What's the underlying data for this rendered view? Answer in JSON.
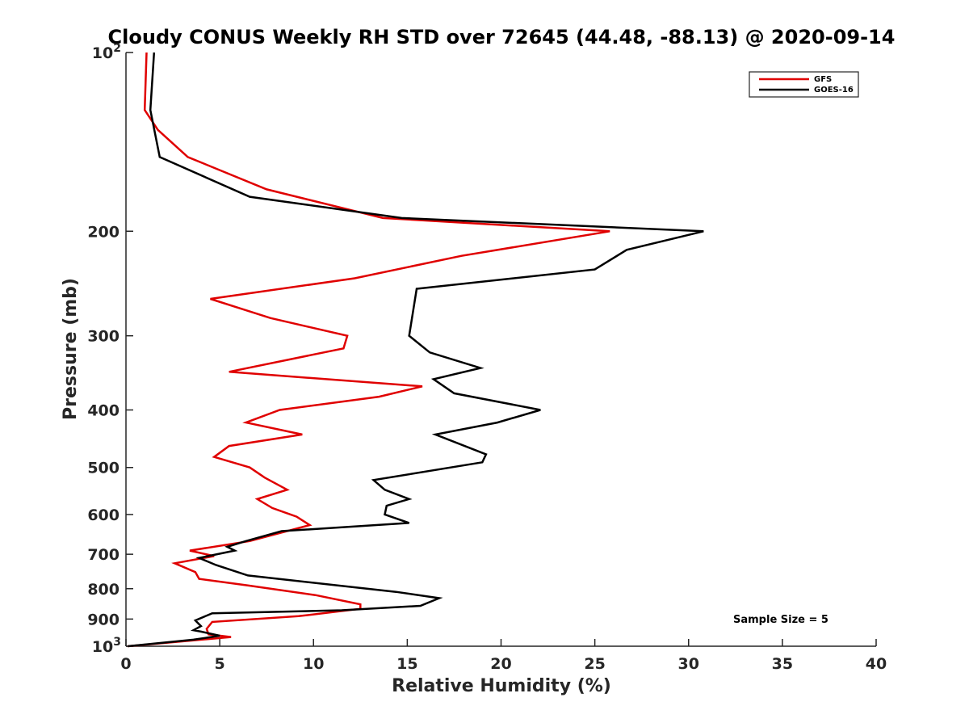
{
  "chart_data": {
    "type": "line",
    "title": "Cloudy CONUS Weekly RH STD over 72645 (44.48, -88.13) @ 2020-09-14",
    "xlabel": "Relative Humidity (%)",
    "ylabel": "Pressure (mb)",
    "xlim": [
      0,
      40
    ],
    "ylim": [
      1000,
      100
    ],
    "yscale": "log",
    "y_inverted": true,
    "grid": false,
    "legend_position": "top-right",
    "x_ticks": [
      "0",
      "5",
      "10",
      "15",
      "20",
      "25",
      "30",
      "35",
      "40"
    ],
    "y_ticks": [
      {
        "base": "10",
        "exp": "2"
      },
      {
        "base": "200",
        "exp": ""
      },
      {
        "base": "300",
        "exp": ""
      },
      {
        "base": "400",
        "exp": ""
      },
      {
        "base": "500",
        "exp": ""
      },
      {
        "base": "600",
        "exp": ""
      },
      {
        "base": "700",
        "exp": ""
      },
      {
        "base": "800",
        "exp": ""
      },
      {
        "base": "900",
        "exp": ""
      },
      {
        "base": "10",
        "exp": "3"
      }
    ],
    "annotation": "Sample Size = 5",
    "series": [
      {
        "name": "GFS",
        "color": "#e00000",
        "points": [
          [
            1.1,
            100
          ],
          [
            1.0,
            125
          ],
          [
            1.7,
            135
          ],
          [
            3.3,
            150
          ],
          [
            7.5,
            170
          ],
          [
            13.7,
            190
          ],
          [
            25.8,
            200
          ],
          [
            17.9,
            220
          ],
          [
            12.2,
            240
          ],
          [
            4.5,
            260
          ],
          [
            7.7,
            280
          ],
          [
            11.8,
            300
          ],
          [
            11.6,
            315
          ],
          [
            5.5,
            345
          ],
          [
            15.8,
            365
          ],
          [
            13.5,
            380
          ],
          [
            8.2,
            400
          ],
          [
            6.4,
            420
          ],
          [
            9.4,
            440
          ],
          [
            5.5,
            460
          ],
          [
            4.7,
            480
          ],
          [
            6.6,
            500
          ],
          [
            7.4,
            520
          ],
          [
            8.6,
            545
          ],
          [
            7.0,
            565
          ],
          [
            7.8,
            585
          ],
          [
            9.1,
            605
          ],
          [
            9.8,
            625
          ],
          [
            6.6,
            665
          ],
          [
            3.4,
            690
          ],
          [
            4.7,
            705
          ],
          [
            2.6,
            725
          ],
          [
            3.7,
            750
          ],
          [
            3.9,
            770
          ],
          [
            6.5,
            790
          ],
          [
            10.1,
            820
          ],
          [
            12.5,
            850
          ],
          [
            12.5,
            865
          ],
          [
            9.2,
            890
          ],
          [
            4.6,
            910
          ],
          [
            4.3,
            935
          ],
          [
            4.4,
            955
          ],
          [
            5.6,
            965
          ],
          [
            0.1,
            1000
          ]
        ]
      },
      {
        "name": "GOES-16",
        "color": "#000000",
        "points": [
          [
            1.5,
            100
          ],
          [
            1.3,
            125
          ],
          [
            1.8,
            150
          ],
          [
            6.6,
            175
          ],
          [
            14.7,
            190
          ],
          [
            30.8,
            200
          ],
          [
            26.7,
            215
          ],
          [
            25.0,
            232
          ],
          [
            15.5,
            250
          ],
          [
            15.1,
            300
          ],
          [
            16.2,
            320
          ],
          [
            18.9,
            340
          ],
          [
            16.4,
            355
          ],
          [
            17.5,
            375
          ],
          [
            22.1,
            400
          ],
          [
            19.8,
            420
          ],
          [
            16.5,
            440
          ],
          [
            19.2,
            475
          ],
          [
            19.0,
            490
          ],
          [
            13.2,
            525
          ],
          [
            13.8,
            545
          ],
          [
            15.1,
            565
          ],
          [
            13.9,
            580
          ],
          [
            13.8,
            600
          ],
          [
            15.1,
            620
          ],
          [
            8.3,
            640
          ],
          [
            6.4,
            665
          ],
          [
            5.4,
            680
          ],
          [
            5.8,
            690
          ],
          [
            3.9,
            710
          ],
          [
            4.8,
            730
          ],
          [
            6.5,
            760
          ],
          [
            14.4,
            810
          ],
          [
            16.7,
            830
          ],
          [
            15.7,
            855
          ],
          [
            11.5,
            870
          ],
          [
            4.6,
            880
          ],
          [
            3.7,
            905
          ],
          [
            4.0,
            925
          ],
          [
            3.6,
            940
          ],
          [
            4.0,
            945
          ],
          [
            5.0,
            960
          ],
          [
            3.6,
            975
          ],
          [
            0.1,
            1000
          ]
        ]
      }
    ]
  }
}
